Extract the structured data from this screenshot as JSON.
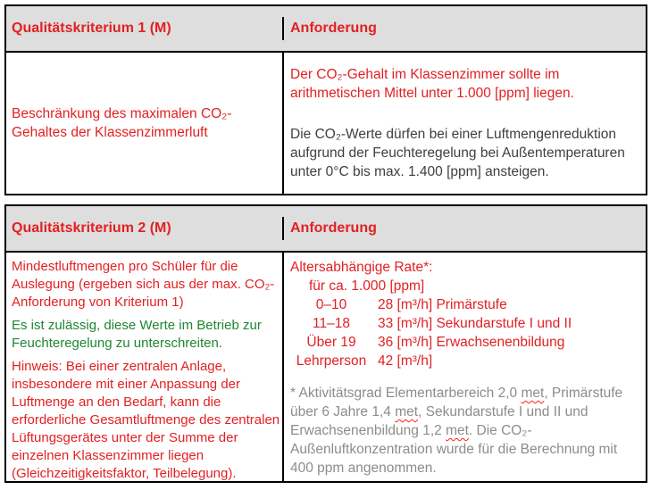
{
  "colors": {
    "red": "#e32023",
    "green": "#1e8732",
    "dark": "#3f3f3f",
    "gray": "#8c8c8c",
    "header_bg": "#dedede",
    "border": "#000000",
    "squiggle": "#ff1f1f"
  },
  "table1": {
    "header": {
      "criterion": "Qualitätskriterium 1 (M)",
      "requirement": "Anforderung"
    },
    "criterion": "Beschränkung des maximalen CO₂-Gehaltes der Klassenzimmerluft",
    "requirement_main": "Der CO₂-Gehalt im Klassenzimmer sollte im arithmetischen Mittel unter 1.000 [ppm] liegen.",
    "requirement_note": "Die CO₂-Werte dürfen bei einer Luftmengenreduktion aufgrund der Feuchteregelung bei Außentemperaturen unter 0°C bis max. 1.400 [ppm] ansteigen."
  },
  "table2": {
    "header": {
      "criterion": "Qualitätskriterium 2 (M)",
      "requirement": "Anforderung"
    },
    "criterion_main": "Mindestluftmengen pro Schüler für die Auslegung (ergeben sich aus der max. CO₂-Anforderung von Kriterium 1)",
    "criterion_permit": "Es ist zulässig, diese Werte im Betrieb zur Feuchteregelung zu unterschreiten.",
    "criterion_note": "Hinweis: Bei einer zentralen Anlage, insbesondere mit einer Anpassung der Luftmenge an den Bedarf, kann die erforderliche Gesamtluftmenge des zentralen Lüftungsgerätes unter der Summe der einzelnen Klassenzimmer liegen (Gleichzeitigkeitsfaktor, Teilbelegung).",
    "rate_title": "Altersabhängige Rate*:",
    "rate_subtitle": "für ca. 1.000 [ppm]",
    "rates": [
      {
        "group": "0–10",
        "rate": "28 [m³/h]",
        "stage": "Primärstufe"
      },
      {
        "group": "11–18",
        "rate": "33 [m³/h]",
        "stage": "Sekundarstufe I und II"
      },
      {
        "group": "Über 19",
        "rate": "36 [m³/h]",
        "stage": "Erwachsenenbildung"
      },
      {
        "group": "Lehrperson",
        "rate": "42 [m³/h]",
        "stage": ""
      }
    ],
    "footnote": [
      {
        "text": "* Aktivitätsgrad Elementarbereich 2,0 "
      },
      {
        "text": "met",
        "misspelled": true
      },
      {
        "text": ", Primärstufe über 6 Jahre 1,4 "
      },
      {
        "text": "met",
        "misspelled": true
      },
      {
        "text": ", Sekundarstufe I und II und Erwachsenenbildung 1,2 "
      },
      {
        "text": "met",
        "misspelled": true
      },
      {
        "text": ". Die CO₂-Außenluftkonzentration wurde für die Berechnung mit 400 ppm angenommen."
      }
    ]
  }
}
